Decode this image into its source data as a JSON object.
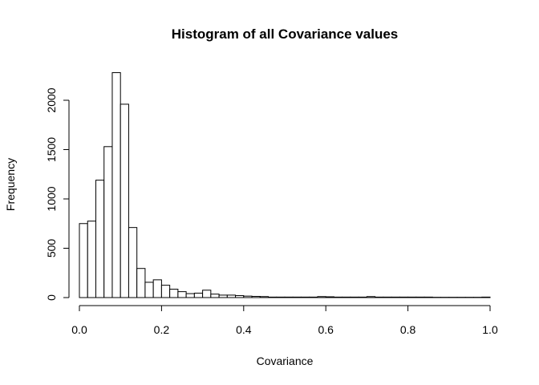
{
  "chart_data": {
    "type": "bar",
    "title": "Histogram of all Covariance values",
    "xlabel": "Covariance",
    "ylabel": "Frequency",
    "xlim": [
      0,
      1
    ],
    "ylim": [
      0,
      2000
    ],
    "x_ticks": [
      "0.0",
      "0.2",
      "0.4",
      "0.6",
      "0.8",
      "1.0"
    ],
    "y_ticks": [
      "0",
      "500",
      "1000",
      "1500",
      "2000"
    ],
    "bin_width": 0.02,
    "bin_start": 0.0,
    "values": [
      750,
      775,
      1190,
      1530,
      2280,
      1960,
      710,
      295,
      155,
      180,
      125,
      85,
      60,
      40,
      45,
      75,
      35,
      25,
      25,
      20,
      15,
      12,
      10,
      5,
      5,
      5,
      5,
      5,
      5,
      10,
      8,
      5,
      5,
      5,
      5,
      10,
      5,
      5,
      5,
      5,
      5,
      5,
      5,
      3,
      3,
      3,
      3,
      3,
      3,
      5
    ],
    "grid": false,
    "legend": "none",
    "bar_fill": "#ffffff",
    "bar_stroke": "#000000"
  }
}
